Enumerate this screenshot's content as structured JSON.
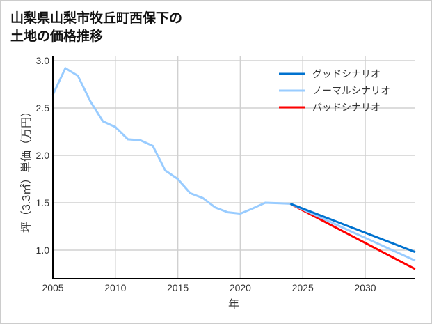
{
  "chart_data": {
    "type": "line",
    "title_lines": [
      "山梨県山梨市牧丘町西保下の",
      "土地の価格推移"
    ],
    "xlabel": "年",
    "ylabel": "坪（3.3㎡）単価（万円）",
    "xlim": [
      2005,
      2034
    ],
    "ylim": [
      0.7,
      3.0
    ],
    "xticks": [
      2005,
      2010,
      2015,
      2020,
      2025,
      2030
    ],
    "yticks": [
      1.0,
      1.5,
      2.0,
      2.5,
      3.0
    ],
    "grid": true,
    "legend_position": "top-right",
    "history": {
      "x": [
        2005,
        2006,
        2007,
        2008,
        2009,
        2010,
        2011,
        2012,
        2013,
        2014,
        2015,
        2016,
        2017,
        2018,
        2019,
        2020,
        2021,
        2022,
        2023,
        2024
      ],
      "y": [
        2.64,
        2.92,
        2.84,
        2.57,
        2.36,
        2.3,
        2.17,
        2.16,
        2.1,
        1.84,
        1.75,
        1.6,
        1.55,
        1.45,
        1.4,
        1.385,
        1.44,
        1.5,
        1.495,
        1.49
      ]
    },
    "series": [
      {
        "name": "グッドシナリオ",
        "color": "#0072cf",
        "x": [
          2024,
          2034
        ],
        "y": [
          1.49,
          0.98
        ]
      },
      {
        "name": "ノーマルシナリオ",
        "color": "#99ccff",
        "x": [
          2024,
          2034
        ],
        "y": [
          1.49,
          0.89
        ]
      },
      {
        "name": "バッドシナリオ",
        "color": "#ff0000",
        "x": [
          2024,
          2034
        ],
        "y": [
          1.49,
          0.8
        ]
      }
    ]
  }
}
